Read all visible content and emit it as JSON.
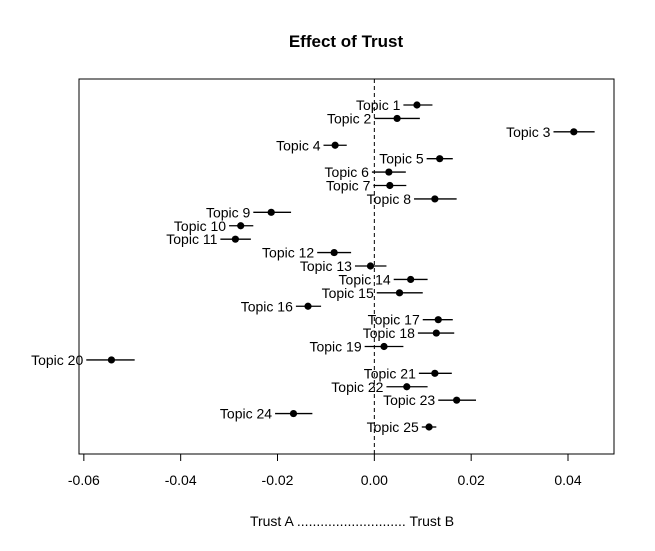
{
  "chart_data": {
    "type": "scatter",
    "title": "Effect of Trust",
    "xlabel": "Trust A ............................ Trust B",
    "xlim": [
      -0.061,
      0.0495
    ],
    "x_ticks": [
      -0.06,
      -0.04,
      -0.02,
      0.0,
      0.02,
      0.04
    ],
    "x_tick_labels": [
      "-0.06",
      "-0.04",
      "-0.02",
      "0.00",
      "0.02",
      "0.04"
    ],
    "reference_line": 0,
    "grid": false,
    "points": [
      {
        "label": "Topic 1",
        "estimate": 0.0088,
        "lower": 0.006,
        "upper": 0.012
      },
      {
        "label": "Topic 2",
        "estimate": 0.0047,
        "lower": 0.0,
        "upper": 0.0094
      },
      {
        "label": "Topic 3",
        "estimate": 0.0412,
        "lower": 0.037,
        "upper": 0.0455
      },
      {
        "label": "Topic 4",
        "estimate": -0.0081,
        "lower": -0.0105,
        "upper": -0.0057
      },
      {
        "label": "Topic 5",
        "estimate": 0.0135,
        "lower": 0.0108,
        "upper": 0.0162
      },
      {
        "label": "Topic 6",
        "estimate": 0.003,
        "lower": -0.0005,
        "upper": 0.0065
      },
      {
        "label": "Topic 7",
        "estimate": 0.0032,
        "lower": -0.0002,
        "upper": 0.0066
      },
      {
        "label": "Topic 8",
        "estimate": 0.0125,
        "lower": 0.0082,
        "upper": 0.017
      },
      {
        "label": "Topic 9",
        "estimate": -0.0213,
        "lower": -0.025,
        "upper": -0.0172
      },
      {
        "label": "Topic 10",
        "estimate": -0.0276,
        "lower": -0.03,
        "upper": -0.025
      },
      {
        "label": "Topic 11",
        "estimate": -0.0287,
        "lower": -0.0318,
        "upper": -0.0255
      },
      {
        "label": "Topic 12",
        "estimate": -0.0083,
        "lower": -0.0118,
        "upper": -0.0048
      },
      {
        "label": "Topic 13",
        "estimate": -0.0008,
        "lower": -0.004,
        "upper": 0.0025
      },
      {
        "label": "Topic 14",
        "estimate": 0.0075,
        "lower": 0.004,
        "upper": 0.011
      },
      {
        "label": "Topic 15",
        "estimate": 0.0052,
        "lower": 0.0005,
        "upper": 0.01
      },
      {
        "label": "Topic 16",
        "estimate": -0.0137,
        "lower": -0.0162,
        "upper": -0.011
      },
      {
        "label": "Topic 17",
        "estimate": 0.0132,
        "lower": 0.01,
        "upper": 0.0162
      },
      {
        "label": "Topic 18",
        "estimate": 0.0128,
        "lower": 0.009,
        "upper": 0.0165
      },
      {
        "label": "Topic 19",
        "estimate": 0.002,
        "lower": -0.002,
        "upper": 0.006
      },
      {
        "label": "Topic 20",
        "estimate": -0.0543,
        "lower": -0.0595,
        "upper": -0.0495
      },
      {
        "label": "Topic 21",
        "estimate": 0.0125,
        "lower": 0.0092,
        "upper": 0.016
      },
      {
        "label": "Topic 22",
        "estimate": 0.0067,
        "lower": 0.0025,
        "upper": 0.011
      },
      {
        "label": "Topic 23",
        "estimate": 0.017,
        "lower": 0.0132,
        "upper": 0.021
      },
      {
        "label": "Topic 24",
        "estimate": -0.0167,
        "lower": -0.0205,
        "upper": -0.0128
      },
      {
        "label": "Topic 25",
        "estimate": 0.0113,
        "lower": 0.0098,
        "upper": 0.0128
      }
    ]
  }
}
